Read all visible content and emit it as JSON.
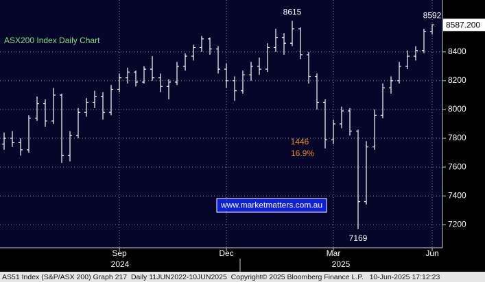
{
  "chart_data": {
    "type": "ohlc",
    "title": "ASX200 Index Daily Chart",
    "color": "#ffffff",
    "categories": [
      null,
      null,
      null,
      null,
      null,
      null,
      null,
      null,
      null,
      null,
      null,
      null,
      null,
      null,
      "Sep",
      null,
      null,
      null,
      null,
      null,
      null,
      null,
      null,
      null,
      null,
      null,
      null,
      "Dec",
      null,
      null,
      null,
      null,
      null,
      null,
      null,
      null,
      null,
      null,
      null,
      null,
      "Mar",
      null,
      null,
      null,
      null,
      null,
      null,
      null,
      null,
      null,
      null,
      null,
      "Jun"
    ],
    "year_labels": [
      "2024",
      "2025"
    ],
    "open": [
      7760,
      7800,
      7770,
      7720,
      7940,
      8040,
      7920,
      8100,
      7680,
      7820,
      7980,
      8050,
      8090,
      7980,
      8140,
      8220,
      8260,
      8190,
      8280,
      8220,
      8160,
      8190,
      8300,
      8370,
      8430,
      8490,
      8420,
      8280,
      8200,
      8130,
      8240,
      8300,
      8280,
      8430,
      8500,
      8460,
      8560,
      8380,
      8230,
      8050,
      7790,
      7900,
      7990,
      7850,
      7360,
      7740,
      7960,
      8150,
      8200,
      8300,
      8370,
      8410,
      8540
    ],
    "high": [
      7840,
      7850,
      7800,
      7960,
      8090,
      8070,
      8150,
      8110,
      7850,
      8010,
      8080,
      8130,
      8120,
      8170,
      8250,
      8290,
      8270,
      8300,
      8370,
      8250,
      8210,
      8330,
      8390,
      8450,
      8510,
      8500,
      8440,
      8320,
      8230,
      8270,
      8330,
      8360,
      8460,
      8560,
      8530,
      8615,
      8570,
      8400,
      8250,
      8070,
      7930,
      8020,
      8010,
      7860,
      7780,
      8000,
      8180,
      8230,
      8330,
      8410,
      8440,
      8560,
      8592
    ],
    "low": [
      7720,
      7740,
      7680,
      7700,
      7920,
      7880,
      7900,
      7630,
      7640,
      7800,
      7950,
      8010,
      7930,
      7960,
      8120,
      8180,
      8160,
      8180,
      8200,
      8120,
      8070,
      8170,
      8270,
      8340,
      8400,
      8380,
      8250,
      8150,
      8060,
      8110,
      8200,
      8240,
      8260,
      8400,
      8380,
      8440,
      8350,
      8180,
      8000,
      7730,
      7760,
      7870,
      7820,
      7169,
      7340,
      7720,
      7940,
      8110,
      8180,
      8280,
      8340,
      8390,
      8520
    ],
    "close": [
      7800,
      7770,
      7720,
      7940,
      8040,
      7920,
      8100,
      7680,
      7820,
      7980,
      8050,
      8090,
      7980,
      8140,
      8220,
      8260,
      8190,
      8280,
      8220,
      8160,
      8190,
      8300,
      8370,
      8430,
      8490,
      8420,
      8280,
      8200,
      8130,
      8240,
      8300,
      8280,
      8430,
      8500,
      8460,
      8560,
      8380,
      8230,
      8050,
      7790,
      7900,
      7990,
      7850,
      7360,
      7740,
      7960,
      8150,
      8200,
      8300,
      8370,
      8410,
      8540,
      8587.2
    ],
    "ylim": [
      7040,
      8760
    ],
    "yticks": [
      7200,
      7400,
      7600,
      7800,
      8000,
      8200,
      8400
    ],
    "grid": true,
    "last_price": {
      "value": 8587.2,
      "label": "8587.200"
    },
    "extreme_labels": [
      {
        "text": "8615",
        "value": 8615,
        "kind": "high"
      },
      {
        "text": "8592",
        "value": 8592,
        "kind": "high"
      },
      {
        "text": "7169",
        "value": 7169,
        "kind": "low"
      }
    ],
    "move_annotation": {
      "points": "1446",
      "percent": "16.9%"
    },
    "website": "www.marketmatters.com.au",
    "footer": "AS51 Index (S&P/ASX 200) Graph 217  Daily 11JUN2022-10JUN2025  Copyright© 2025 Bloomberg Finance L.P.   10-Jun-2025 17:12:23"
  }
}
